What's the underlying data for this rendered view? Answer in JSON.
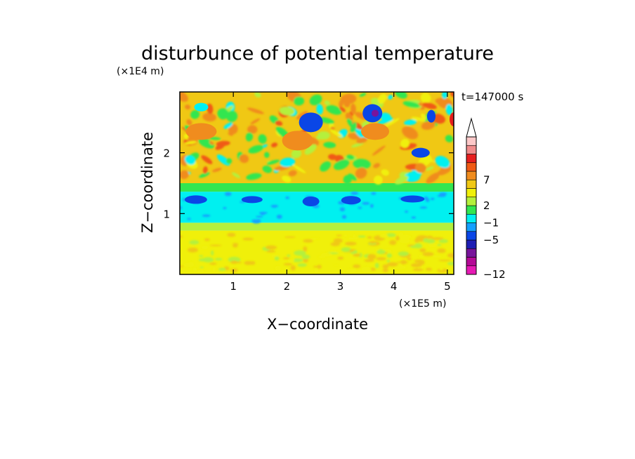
{
  "chart_data": {
    "type": "heatmap",
    "title": "disturbunce of potential temperature",
    "time_label": "t=147000 s",
    "xlabel": "X−coordinate",
    "ylabel": "Z−coordinate",
    "x_unit": "(×1E5 m)",
    "y_unit": "(×1E4 m)",
    "xlim": [
      0,
      5.12
    ],
    "ylim": [
      0,
      3.0
    ],
    "x_ticks": [
      1,
      2,
      3,
      4,
      5
    ],
    "y_ticks": [
      1,
      2
    ],
    "x_tick_labels": [
      "1",
      "2",
      "3",
      "4",
      "5"
    ],
    "y_tick_labels": [
      "1",
      "2"
    ],
    "colorbar": {
      "levels_from_bottom": [
        "-12",
        "",
        "",
        "",
        "-5",
        "",
        "-1",
        "",
        "2",
        "",
        "",
        "7",
        "",
        ""
      ],
      "labeled_ticks": [
        "7",
        "2",
        "−1",
        "−5",
        "−12"
      ],
      "extend": "max",
      "colors_from_bottom": [
        "#e61ab4",
        "#b40a96",
        "#78149b",
        "#1e1eb4",
        "#0a46e6",
        "#14a0ff",
        "#00f0f0",
        "#32e650",
        "#b4f03c",
        "#f0f00a",
        "#f0c814",
        "#f08c1e",
        "#f05a14",
        "#e61e1e",
        "#f08c8c",
        "#fcc8c8"
      ]
    },
    "bands": [
      {
        "z_from": 0.0,
        "z_to": 0.72,
        "level": "1 to 2",
        "color": "#f0f00a"
      },
      {
        "z_from": 0.72,
        "z_to": 0.85,
        "level": "0 to 1",
        "color": "#b4f03c"
      },
      {
        "z_from": 0.85,
        "z_to": 1.36,
        "level": "-1 to 0",
        "color": "#00f0f0"
      },
      {
        "z_from": 1.36,
        "z_to": 1.5,
        "level": "0 to 1",
        "color": "#32e650"
      },
      {
        "z_from": 1.5,
        "z_to": 3.0,
        "level": "1 to 4",
        "color": "#f0c814"
      }
    ],
    "features": [
      {
        "x": 2.45,
        "z": 2.5,
        "value": -5,
        "color": "#0a46e6"
      },
      {
        "x": 3.6,
        "z": 2.65,
        "value": -5,
        "color": "#0a46e6"
      },
      {
        "x": 3.65,
        "z": 2.65,
        "value": -9,
        "color": "#78149b"
      },
      {
        "x": 3.65,
        "z": 2.35,
        "value": 5,
        "color": "#f08c1e"
      },
      {
        "x": 2.2,
        "z": 2.2,
        "value": 4,
        "color": "#f08c1e"
      },
      {
        "x": 0.4,
        "z": 2.35,
        "value": 4,
        "color": "#f08c1e"
      },
      {
        "x": 5.12,
        "z": 2.55,
        "value": 7,
        "color": "#e61e1e"
      },
      {
        "x": 4.5,
        "z": 2.0,
        "value": -5,
        "color": "#0a46e6"
      },
      {
        "x": 4.7,
        "z": 2.6,
        "value": -5,
        "color": "#0a46e6"
      },
      {
        "x": 0.3,
        "z": 1.23,
        "value": -5,
        "color": "#0a46e6"
      },
      {
        "x": 1.35,
        "z": 1.23,
        "value": -5,
        "color": "#0a46e6"
      },
      {
        "x": 2.45,
        "z": 1.2,
        "value": -5,
        "color": "#0a46e6"
      },
      {
        "x": 3.2,
        "z": 1.22,
        "value": -5,
        "color": "#0a46e6"
      },
      {
        "x": 4.35,
        "z": 1.24,
        "value": -5,
        "color": "#0a46e6"
      },
      {
        "x": 0.4,
        "z": 2.75,
        "value": -1,
        "color": "#00f0f0"
      }
    ]
  }
}
